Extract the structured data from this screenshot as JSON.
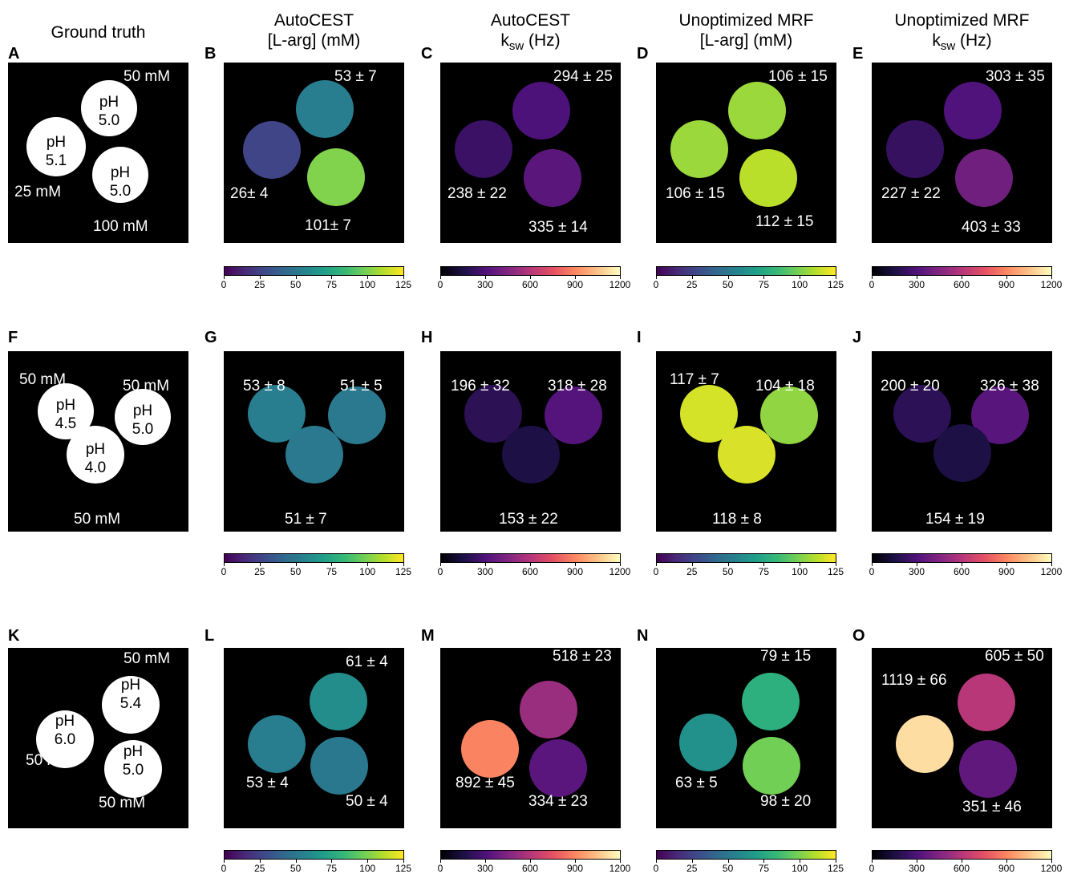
{
  "column_titles": [
    {
      "line1": "Ground truth",
      "line2": ""
    },
    {
      "line1": "AutoCEST",
      "line2": "[L-arg] (mM)"
    },
    {
      "line1": "AutoCEST",
      "line2_main": "k",
      "line2_sub": "sw",
      "line2_rest": " (Hz)"
    },
    {
      "line1": "Unoptimized MRF",
      "line2": "[L-arg] (mM)"
    },
    {
      "line1": "Unoptimized MRF",
      "line2_main": "k",
      "line2_sub": "sw",
      "line2_rest": " (Hz)"
    }
  ],
  "panel_letters": [
    "A",
    "B",
    "C",
    "D",
    "E",
    "F",
    "G",
    "H",
    "I",
    "J",
    "K",
    "L",
    "M",
    "N",
    "O"
  ],
  "ground_truth": [
    {
      "labels": [
        "50 mM",
        "25 mM",
        "100 mM"
      ],
      "ph": [
        [
          "pH",
          "5.0"
        ],
        [
          "pH",
          "5.1"
        ],
        [
          "pH",
          "5.0"
        ]
      ]
    },
    {
      "labels": [
        "50 mM",
        "50 mM",
        "50 mM"
      ],
      "ph": [
        [
          "pH",
          "4.5"
        ],
        [
          "pH",
          "5.0"
        ],
        [
          "pH",
          "4.0"
        ]
      ]
    },
    {
      "labels": [
        "50 mM",
        "50 mM",
        "50 mM"
      ],
      "ph": [
        [
          "pH",
          "5.4"
        ],
        [
          "pH",
          "6.0"
        ],
        [
          "pH",
          "5.0"
        ]
      ]
    }
  ],
  "maps": [
    [
      {
        "labels": [
          "53 ± 7",
          "26± 4",
          "101± 7"
        ],
        "values": [
          53,
          26,
          101
        ],
        "colormap": "viridis"
      },
      {
        "labels": [
          "294 ± 25",
          "238 ± 22",
          "335 ± 14"
        ],
        "values": [
          294,
          238,
          335
        ],
        "colormap": "magma"
      },
      {
        "labels": [
          "106 ± 15",
          "106 ± 15",
          "112 ± 15"
        ],
        "values": [
          106,
          106,
          112
        ],
        "colormap": "viridis"
      },
      {
        "labels": [
          "303 ± 35",
          "227 ± 22",
          "403 ± 33"
        ],
        "values": [
          303,
          227,
          403
        ],
        "colormap": "magma"
      }
    ],
    [
      {
        "labels": [
          "53 ± 8",
          "51 ± 5",
          "51 ± 7"
        ],
        "values": [
          53,
          51,
          51
        ],
        "colormap": "viridis"
      },
      {
        "labels": [
          "196 ± 32",
          "318 ± 28",
          "153 ± 22"
        ],
        "values": [
          196,
          318,
          153
        ],
        "colormap": "magma"
      },
      {
        "labels": [
          "117 ± 7",
          "104 ± 18",
          "118 ± 8"
        ],
        "values": [
          117,
          104,
          118
        ],
        "colormap": "viridis"
      },
      {
        "labels": [
          "200 ± 20",
          "326 ± 38",
          "154 ± 19"
        ],
        "values": [
          200,
          326,
          154
        ],
        "colormap": "magma"
      }
    ],
    [
      {
        "labels": [
          "61 ± 4",
          "53 ± 4",
          "50 ± 4"
        ],
        "values": [
          61,
          53,
          50
        ],
        "colormap": "viridis"
      },
      {
        "labels": [
          "518 ± 23",
          "892 ± 45",
          "334 ± 23"
        ],
        "values": [
          518,
          892,
          334
        ],
        "colormap": "magma"
      },
      {
        "labels": [
          "79 ± 15",
          "63 ± 5",
          "98 ± 20"
        ],
        "values": [
          79,
          63,
          98
        ],
        "colormap": "viridis"
      },
      {
        "labels": [
          "605 ± 50",
          "1119 ± 66",
          "351 ± 46"
        ],
        "values": [
          605,
          1119,
          351
        ],
        "colormap": "magma"
      }
    ]
  ],
  "colorbars": {
    "viridis": {
      "min": 0,
      "max": 125,
      "ticks": [
        "0",
        "25",
        "50",
        "75",
        "100",
        "125"
      ]
    },
    "magma": {
      "min": 0,
      "max": 1200,
      "ticks": [
        "0",
        "300",
        "600",
        "900",
        "1200"
      ]
    }
  }
}
